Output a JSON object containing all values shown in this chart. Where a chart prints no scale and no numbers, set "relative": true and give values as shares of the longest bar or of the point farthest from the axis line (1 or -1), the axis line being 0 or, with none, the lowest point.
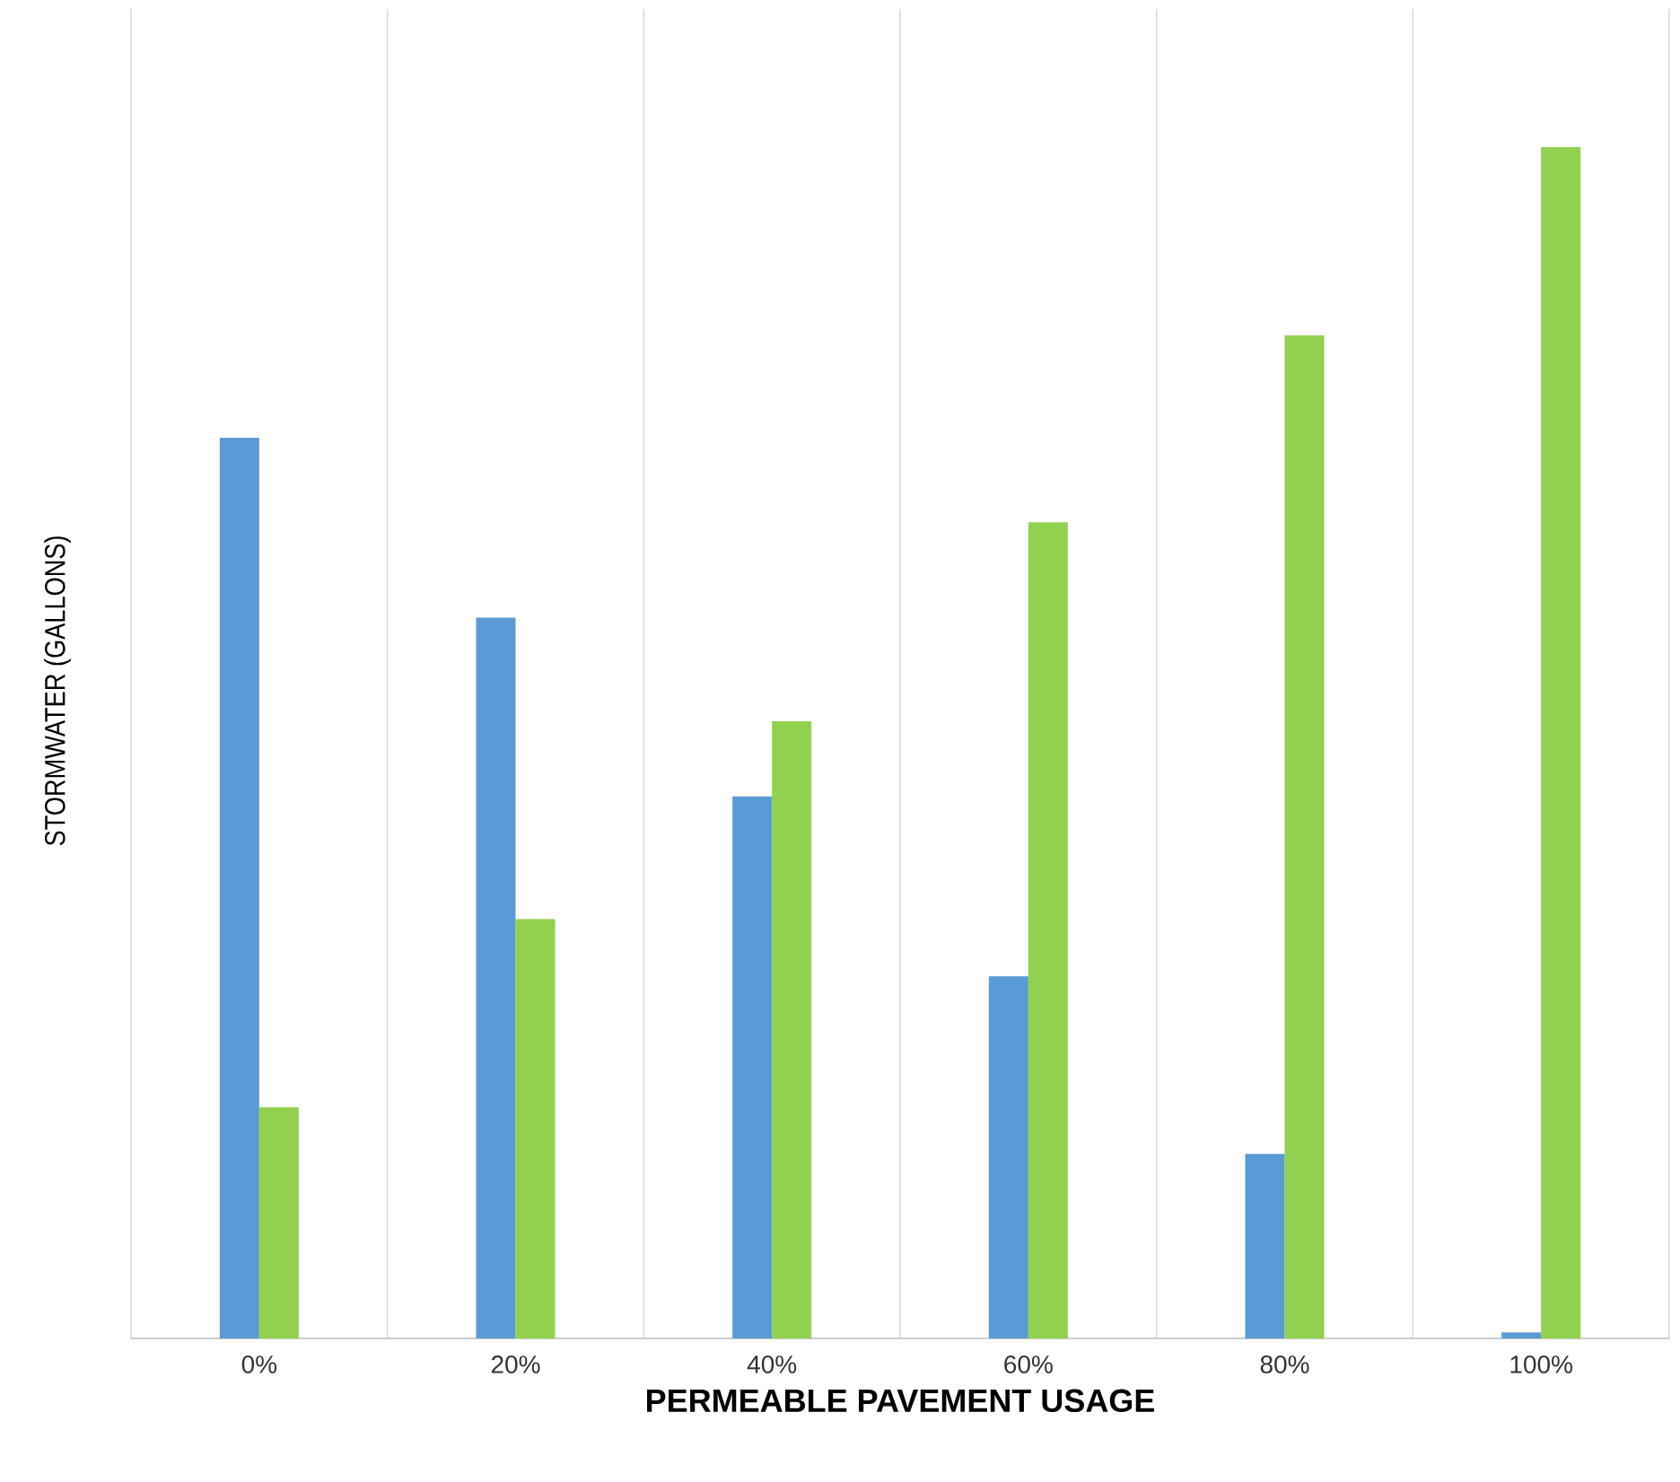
{
  "chart_data": {
    "type": "bar",
    "relative": true,
    "xlabel": "PERMEABLE PAVEMENT USAGE",
    "ylabel": "STORMWATER (GALLONS)",
    "categories": [
      "0%",
      "20%",
      "40%",
      "60%",
      "80%",
      "100%"
    ],
    "series": [
      {
        "color": "#5b9bd5",
        "values": [
          0.756,
          0.605,
          0.455,
          0.304,
          0.155,
          0.005
        ]
      },
      {
        "color": "#92d050",
        "values": [
          0.194,
          0.352,
          0.518,
          0.685,
          0.842,
          1
        ]
      }
    ],
    "grid": "x"
  }
}
